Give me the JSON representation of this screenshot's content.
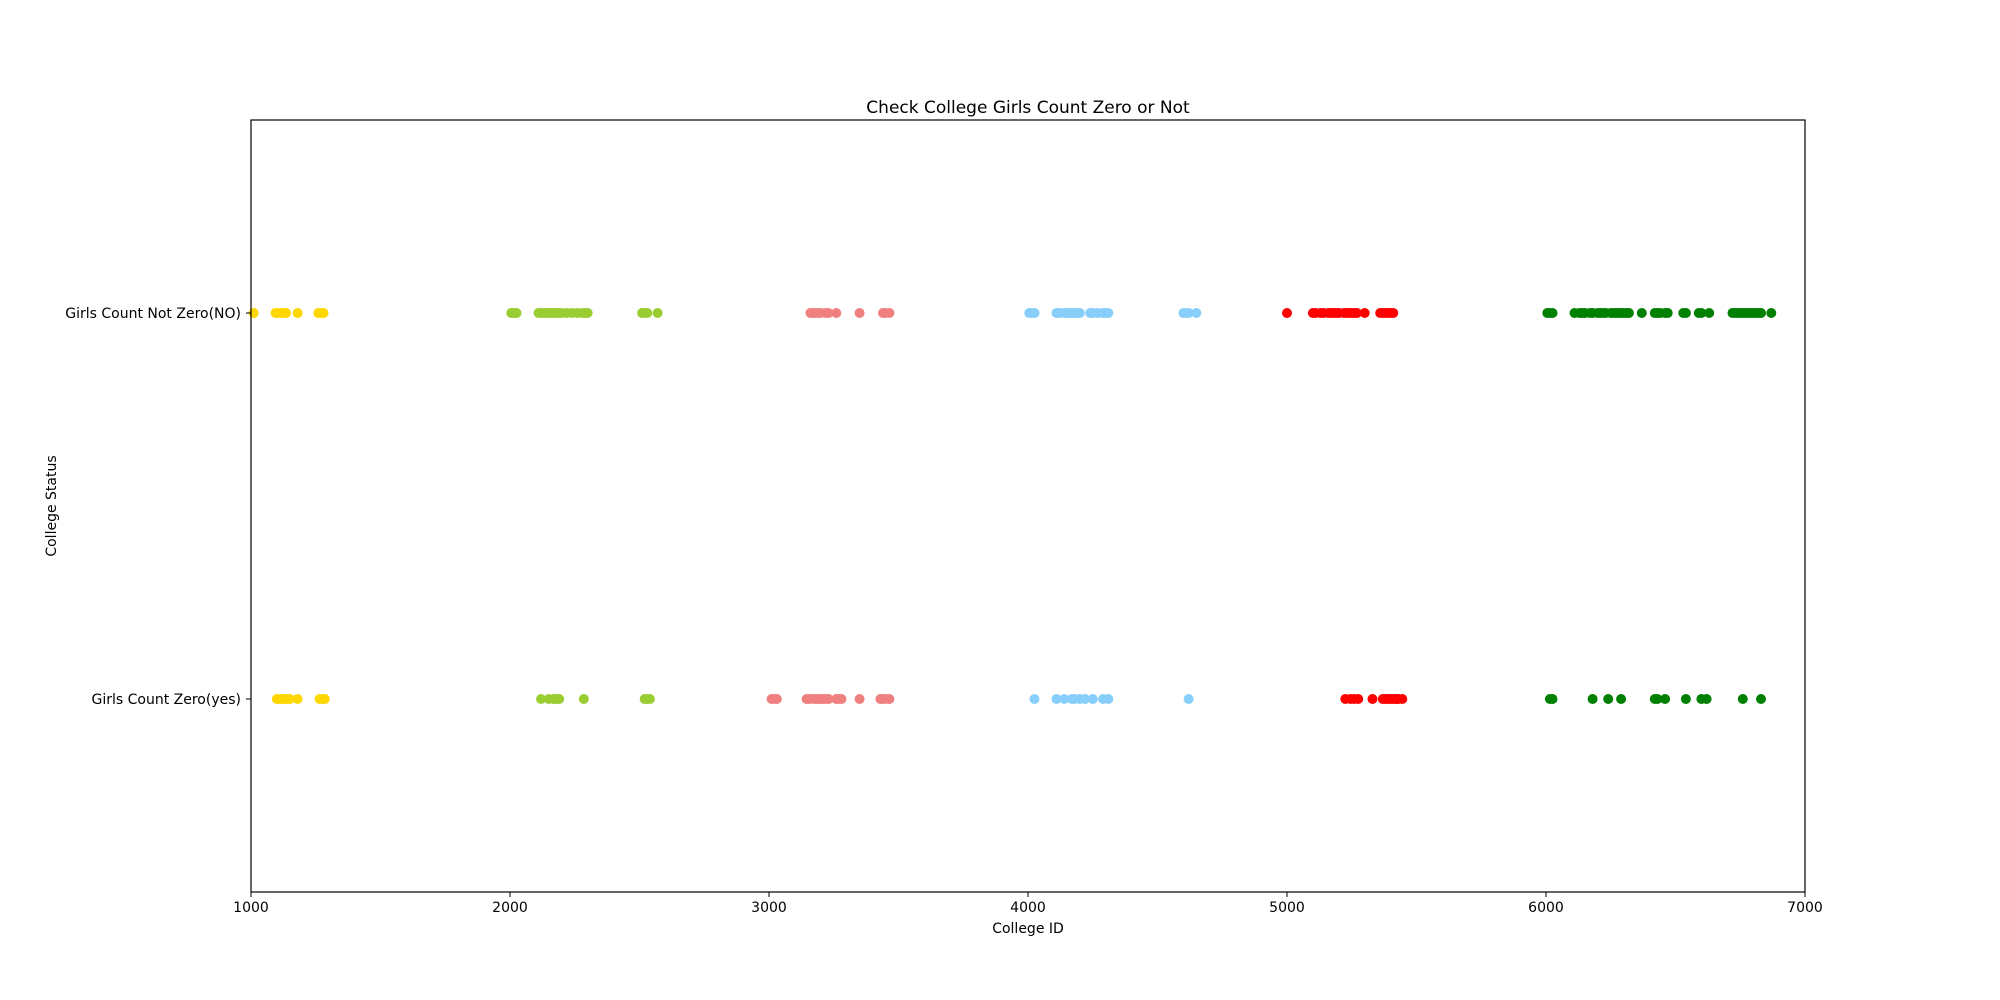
{
  "chart_data": {
    "type": "scatter",
    "title": "Check College Girls Count Zero or Not",
    "xlabel": "College ID",
    "ylabel": "College Status",
    "xlim": [
      1000,
      7000
    ],
    "x_ticks": [
      1000,
      2000,
      3000,
      4000,
      5000,
      6000,
      7000
    ],
    "categories": [
      "Girls Count Zero(yes)",
      "Girls Count Not Zero(NO)"
    ],
    "grid": false,
    "series": [
      {
        "color": "#ffd700",
        "points_no": [
          1010,
          1095,
          1105,
          1115,
          1125,
          1135,
          1180,
          1260,
          1270,
          1280
        ],
        "points_yes": [
          1100,
          1110,
          1120,
          1130,
          1140,
          1150,
          1180,
          1265,
          1275,
          1285
        ]
      },
      {
        "color": "#9acd32",
        "points_no": [
          2005,
          2015,
          2025,
          2110,
          2120,
          2130,
          2140,
          2150,
          2160,
          2170,
          2180,
          2190,
          2200,
          2220,
          2240,
          2260,
          2280,
          2290,
          2300,
          2510,
          2520,
          2530,
          2570
        ],
        "points_yes": [
          2120,
          2150,
          2170,
          2180,
          2190,
          2285,
          2520,
          2530,
          2540
        ]
      },
      {
        "color": "#f08080",
        "points_no": [
          3160,
          3170,
          3180,
          3190,
          3200,
          3220,
          3230,
          3260,
          3350,
          3440,
          3450,
          3465
        ],
        "points_yes": [
          3010,
          3020,
          3030,
          3145,
          3155,
          3170,
          3180,
          3190,
          3200,
          3210,
          3220,
          3230,
          3260,
          3270,
          3280,
          3350,
          3430,
          3440,
          3450,
          3465
        ]
      },
      {
        "color": "#87cefa",
        "points_no": [
          4005,
          4015,
          4025,
          4110,
          4120,
          4140,
          4150,
          4160,
          4170,
          4180,
          4190,
          4200,
          4240,
          4250,
          4270,
          4290,
          4300,
          4310,
          4600,
          4610,
          4620,
          4650
        ],
        "points_yes": [
          4025,
          4110,
          4140,
          4170,
          4180,
          4200,
          4220,
          4250,
          4290,
          4310,
          4620
        ]
      },
      {
        "color": "#ff0000",
        "points_no": [
          5000,
          5100,
          5110,
          5130,
          5140,
          5160,
          5170,
          5180,
          5190,
          5200,
          5220,
          5230,
          5240,
          5250,
          5260,
          5270,
          5300,
          5360,
          5370,
          5380,
          5390,
          5400,
          5410
        ],
        "points_yes": [
          5225,
          5245,
          5260,
          5275,
          5330,
          5370,
          5380,
          5390,
          5400,
          5410,
          5420,
          5430,
          5445
        ]
      },
      {
        "color": "#008000",
        "points_no": [
          6005,
          6015,
          6025,
          6110,
          6130,
          6140,
          6150,
          6170,
          6180,
          6200,
          6210,
          6220,
          6230,
          6250,
          6260,
          6270,
          6280,
          6290,
          6300,
          6310,
          6320,
          6370,
          6420,
          6430,
          6440,
          6460,
          6470,
          6530,
          6540,
          6590,
          6600,
          6630,
          6720,
          6730,
          6740,
          6750,
          6760,
          6770,
          6780,
          6790,
          6800,
          6810,
          6820,
          6830,
          6870
        ],
        "points_yes": [
          6015,
          6025,
          6180,
          6240,
          6290,
          6420,
          6430,
          6460,
          6540,
          6600,
          6620,
          6760,
          6830
        ]
      }
    ]
  }
}
